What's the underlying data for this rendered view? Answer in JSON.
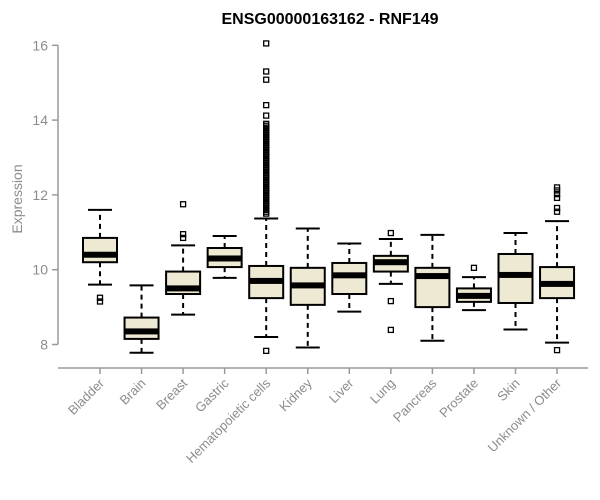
{
  "chart_data": {
    "type": "boxplot",
    "title": "ENSG00000163162 - RNF149",
    "ylabel": "Expression",
    "xlabel": "",
    "ylim": [
      8,
      16
    ],
    "yticks": [
      8,
      10,
      12,
      14,
      16
    ],
    "grid": false,
    "legend": "none",
    "categories": [
      "Bladder",
      "Brain",
      "Breast",
      "Gastric",
      "Hematopoietic cells",
      "Kidney",
      "Liver",
      "Lung",
      "Pancreas",
      "Prostate",
      "Skin",
      "Unknown / Other"
    ],
    "series": [
      {
        "category": "Bladder",
        "whisker_low": 9.6,
        "q1": 10.2,
        "median": 10.4,
        "q3": 10.85,
        "whisker_high": 11.6,
        "outliers": [
          9.25,
          9.15
        ]
      },
      {
        "category": "Brain",
        "whisker_low": 7.78,
        "q1": 8.15,
        "median": 8.35,
        "q3": 8.72,
        "whisker_high": 9.58,
        "outliers": []
      },
      {
        "category": "Breast",
        "whisker_low": 8.8,
        "q1": 9.35,
        "median": 9.5,
        "q3": 9.95,
        "whisker_high": 10.65,
        "outliers": [
          11.75,
          10.95,
          10.85
        ]
      },
      {
        "category": "Gastric",
        "whisker_low": 9.78,
        "q1": 10.07,
        "median": 10.3,
        "q3": 10.58,
        "whisker_high": 10.9,
        "outliers": []
      },
      {
        "category": "Hematopoietic cells",
        "whisker_low": 8.2,
        "q1": 9.24,
        "median": 9.7,
        "q3": 10.1,
        "whisker_high": 11.37,
        "outliers": [
          7.83,
          11.5,
          11.55,
          11.6,
          11.65,
          11.7,
          11.75,
          11.8,
          11.85,
          11.9,
          11.95,
          12.0,
          12.05,
          12.1,
          12.15,
          12.2,
          12.25,
          12.3,
          12.35,
          12.4,
          12.45,
          12.5,
          12.55,
          12.6,
          12.65,
          12.7,
          12.75,
          12.8,
          12.85,
          12.9,
          12.95,
          13.0,
          13.05,
          13.1,
          13.15,
          13.2,
          13.25,
          13.3,
          13.35,
          13.4,
          13.45,
          13.5,
          13.55,
          13.6,
          13.65,
          13.7,
          13.75,
          13.8,
          13.85,
          13.9,
          14.12,
          14.4,
          15.08,
          15.3,
          16.05
        ]
      },
      {
        "category": "Kidney",
        "whisker_low": 7.92,
        "q1": 9.06,
        "median": 9.58,
        "q3": 10.05,
        "whisker_high": 11.1,
        "outliers": []
      },
      {
        "category": "Liver",
        "whisker_low": 8.88,
        "q1": 9.35,
        "median": 9.85,
        "q3": 10.18,
        "whisker_high": 10.7,
        "outliers": []
      },
      {
        "category": "Lung",
        "whisker_low": 9.62,
        "q1": 9.95,
        "median": 10.2,
        "q3": 10.37,
        "whisker_high": 10.82,
        "outliers": [
          10.98,
          9.16,
          8.39
        ]
      },
      {
        "category": "Pancreas",
        "whisker_low": 8.1,
        "q1": 9.0,
        "median": 9.83,
        "q3": 10.05,
        "whisker_high": 10.93,
        "outliers": []
      },
      {
        "category": "Prostate",
        "whisker_low": 8.92,
        "q1": 9.14,
        "median": 9.3,
        "q3": 9.5,
        "whisker_high": 9.8,
        "outliers": [
          10.05
        ]
      },
      {
        "category": "Skin",
        "whisker_low": 8.4,
        "q1": 9.11,
        "median": 9.86,
        "q3": 10.42,
        "whisker_high": 10.98,
        "outliers": []
      },
      {
        "category": "Unknown / Other",
        "whisker_low": 8.05,
        "q1": 9.24,
        "median": 9.62,
        "q3": 10.07,
        "whisker_high": 11.3,
        "outliers": [
          12.2,
          12.12,
          12.02,
          11.92,
          11.65,
          11.55,
          7.85
        ]
      }
    ],
    "colors": {
      "box_fill": "#EEE9D2",
      "box_stroke": "#000000",
      "median": "#000000",
      "whisker": "#000000",
      "axis_line": "#9A9A9A",
      "tick_label": "#8C8C8C",
      "title": "#000000",
      "background": "#FFFFFF"
    }
  }
}
